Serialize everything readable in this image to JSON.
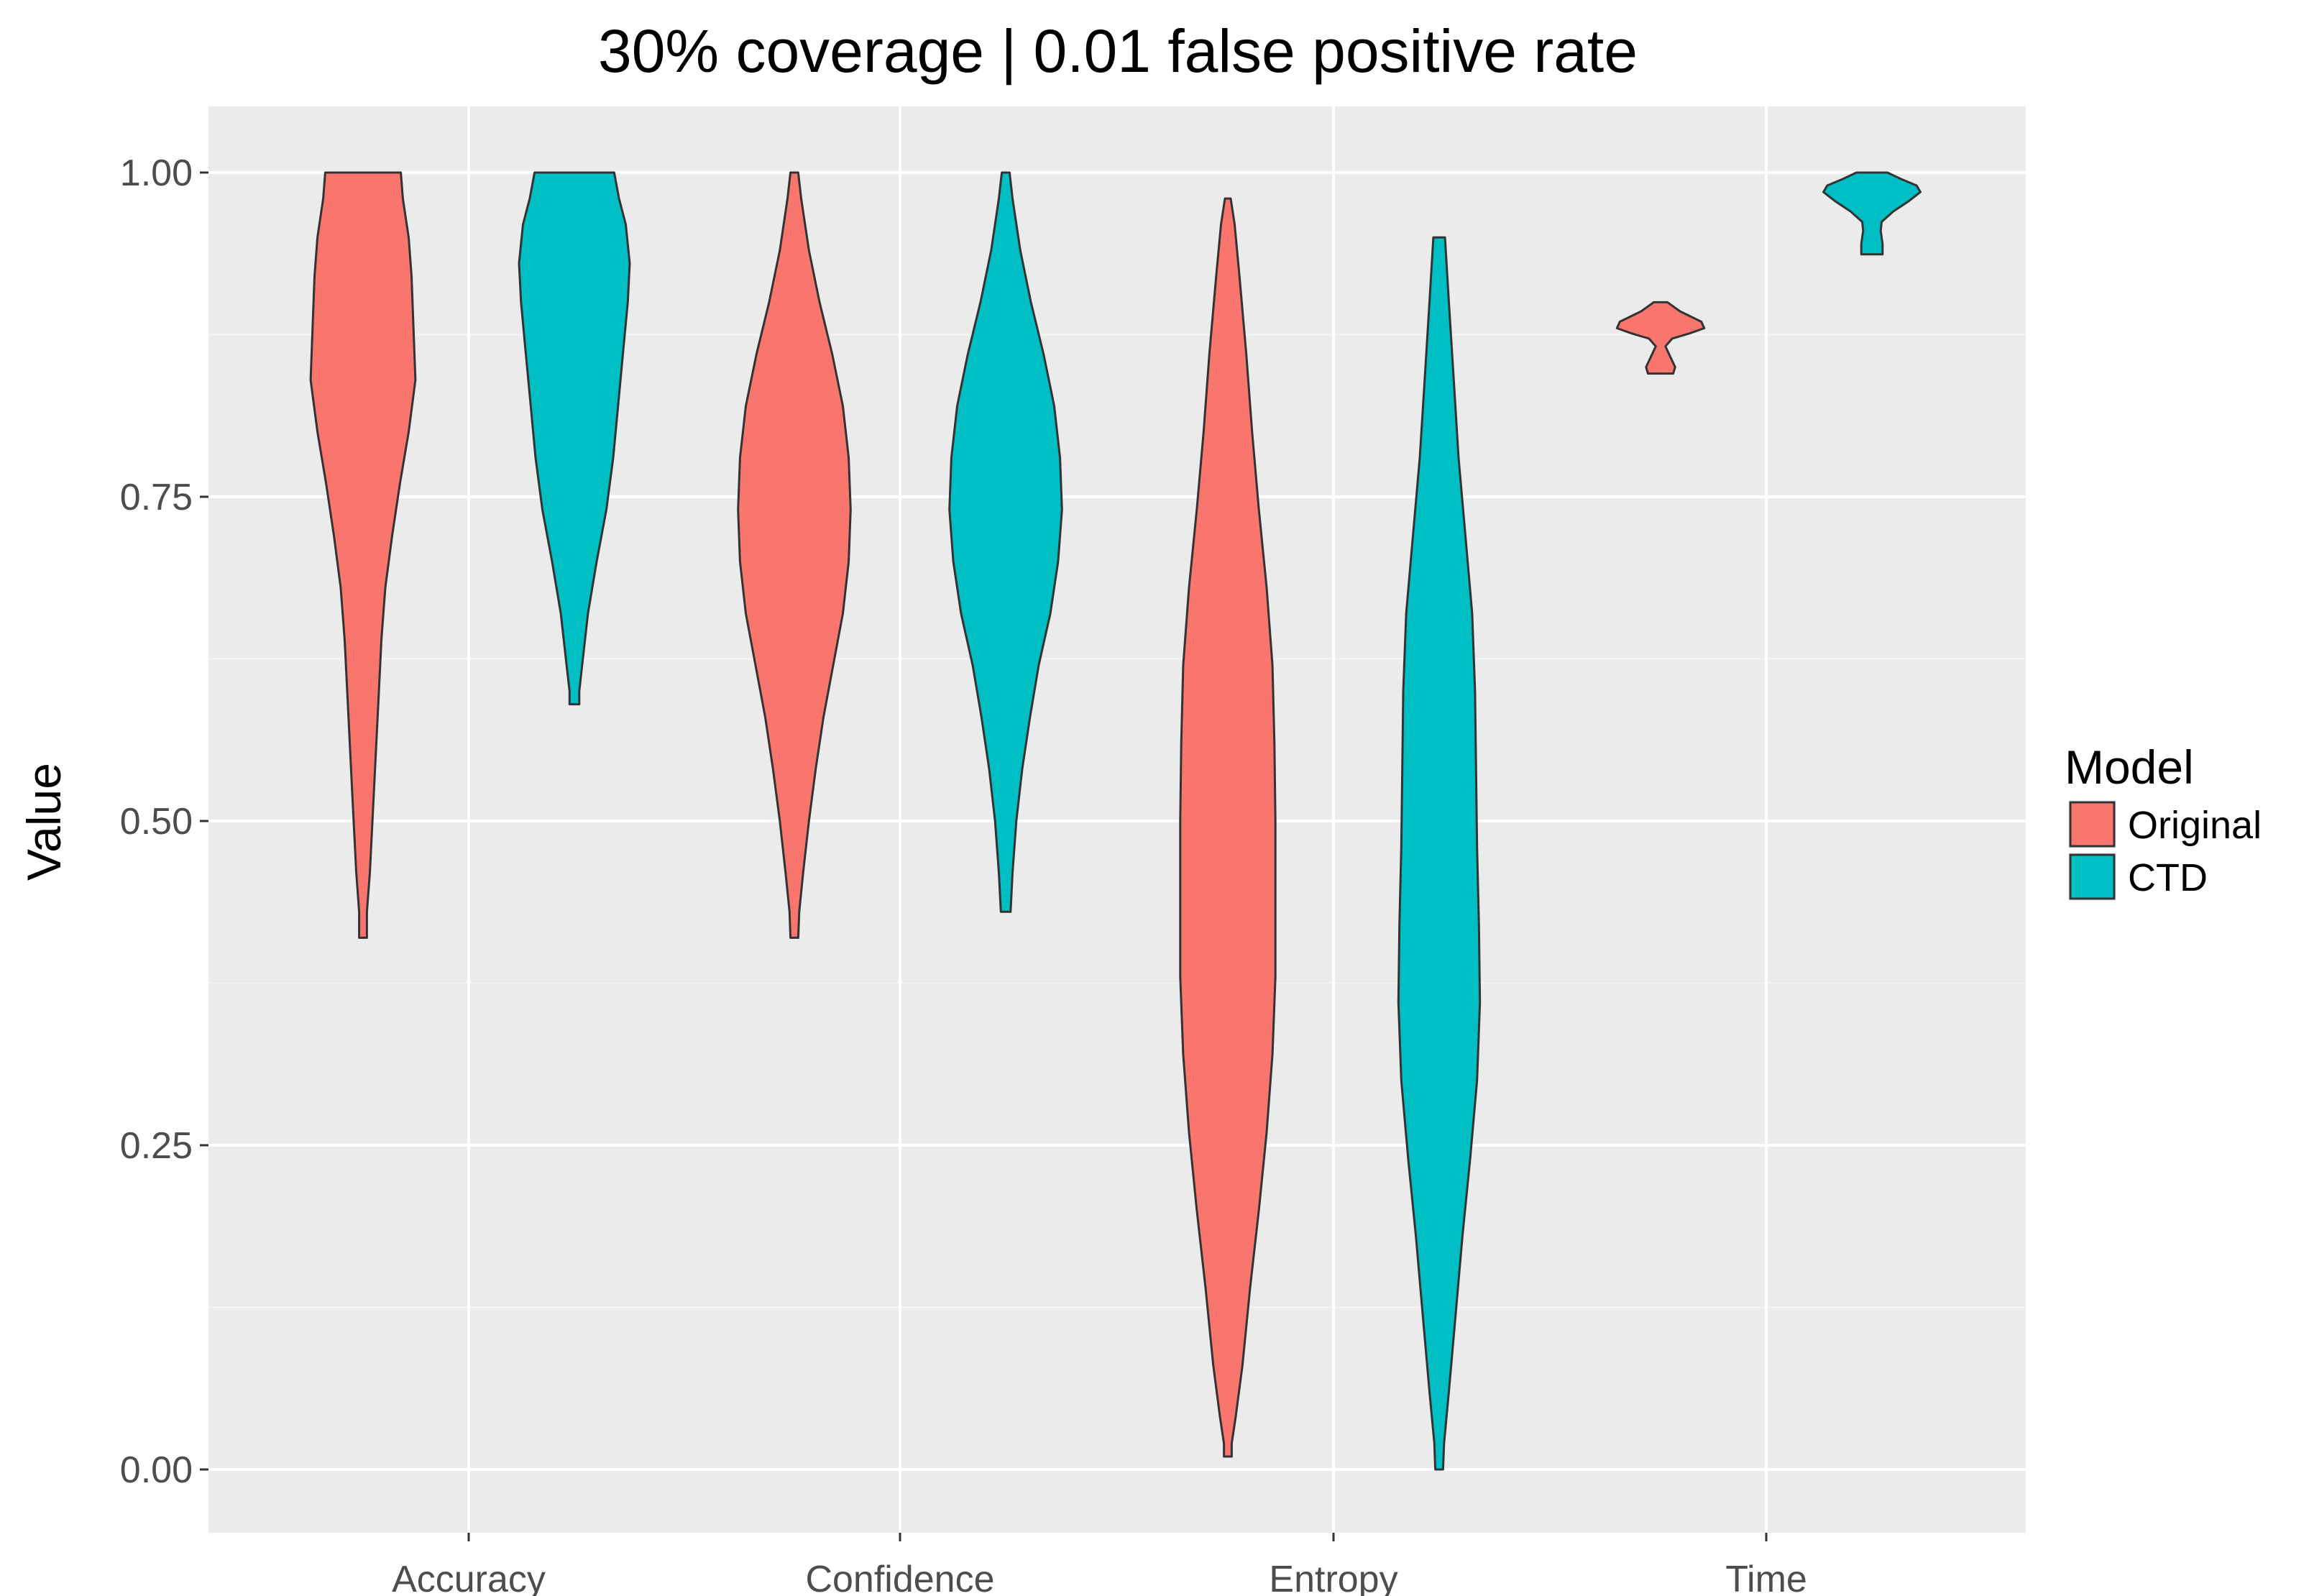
{
  "chart_data": {
    "type": "violin",
    "title": "30% coverage | 0.01 false positive rate",
    "xlabel": "",
    "ylabel": "Value",
    "categories": [
      "Accuracy",
      "Confidence",
      "Entropy",
      "Time"
    ],
    "yticks": [
      "0.00",
      "0.25",
      "0.50",
      "0.75",
      "1.00"
    ],
    "ylim": [
      -0.05,
      1.05
    ],
    "grid": true,
    "legend": {
      "title": "Model",
      "position": "right"
    },
    "series": [
      {
        "name": "Original",
        "color": "#F8766D",
        "violins": [
          {
            "category": "Accuracy",
            "min": 0.41,
            "max": 1.0,
            "profile": [
              [
                1.0,
                0.39
              ],
              [
                0.98,
                0.41
              ],
              [
                0.95,
                0.47
              ],
              [
                0.92,
                0.5
              ],
              [
                0.88,
                0.52
              ],
              [
                0.84,
                0.54
              ],
              [
                0.8,
                0.47
              ],
              [
                0.76,
                0.38
              ],
              [
                0.72,
                0.3
              ],
              [
                0.68,
                0.23
              ],
              [
                0.64,
                0.19
              ],
              [
                0.58,
                0.15
              ],
              [
                0.52,
                0.11
              ],
              [
                0.46,
                0.07
              ],
              [
                0.43,
                0.04
              ],
              [
                0.41,
                0.04
              ]
            ]
          },
          {
            "category": "Confidence",
            "min": 0.41,
            "max": 1.0,
            "profile": [
              [
                1.0,
                0.04
              ],
              [
                0.98,
                0.07
              ],
              [
                0.94,
                0.15
              ],
              [
                0.9,
                0.26
              ],
              [
                0.86,
                0.39
              ],
              [
                0.82,
                0.5
              ],
              [
                0.78,
                0.56
              ],
              [
                0.74,
                0.58
              ],
              [
                0.7,
                0.56
              ],
              [
                0.66,
                0.5
              ],
              [
                0.62,
                0.4
              ],
              [
                0.58,
                0.3
              ],
              [
                0.54,
                0.22
              ],
              [
                0.5,
                0.15
              ],
              [
                0.46,
                0.09
              ],
              [
                0.43,
                0.05
              ],
              [
                0.41,
                0.04
              ]
            ]
          }
        ]
      },
      {
        "name": "CTD",
        "color": "#00BFC4",
        "violins": [
          {
            "category": "Accuracy",
            "min": 0.59,
            "max": 1.0,
            "profile": [
              [
                1.0,
                0.41
              ],
              [
                0.98,
                0.46
              ],
              [
                0.96,
                0.53
              ],
              [
                0.93,
                0.57
              ],
              [
                0.9,
                0.55
              ],
              [
                0.86,
                0.5
              ],
              [
                0.82,
                0.45
              ],
              [
                0.78,
                0.4
              ],
              [
                0.74,
                0.33
              ],
              [
                0.7,
                0.23
              ],
              [
                0.66,
                0.14
              ],
              [
                0.62,
                0.08
              ],
              [
                0.6,
                0.05
              ],
              [
                0.59,
                0.05
              ]
            ]
          },
          {
            "category": "Confidence",
            "min": 0.43,
            "max": 1.0,
            "profile": [
              [
                1.0,
                0.04
              ],
              [
                0.98,
                0.07
              ],
              [
                0.94,
                0.15
              ],
              [
                0.9,
                0.26
              ],
              [
                0.86,
                0.39
              ],
              [
                0.82,
                0.5
              ],
              [
                0.78,
                0.56
              ],
              [
                0.74,
                0.58
              ],
              [
                0.7,
                0.54
              ],
              [
                0.66,
                0.46
              ],
              [
                0.62,
                0.34
              ],
              [
                0.58,
                0.25
              ],
              [
                0.54,
                0.17
              ],
              [
                0.5,
                0.11
              ],
              [
                0.46,
                0.07
              ],
              [
                0.43,
                0.05
              ]
            ]
          }
        ]
      }
    ]
  }
}
